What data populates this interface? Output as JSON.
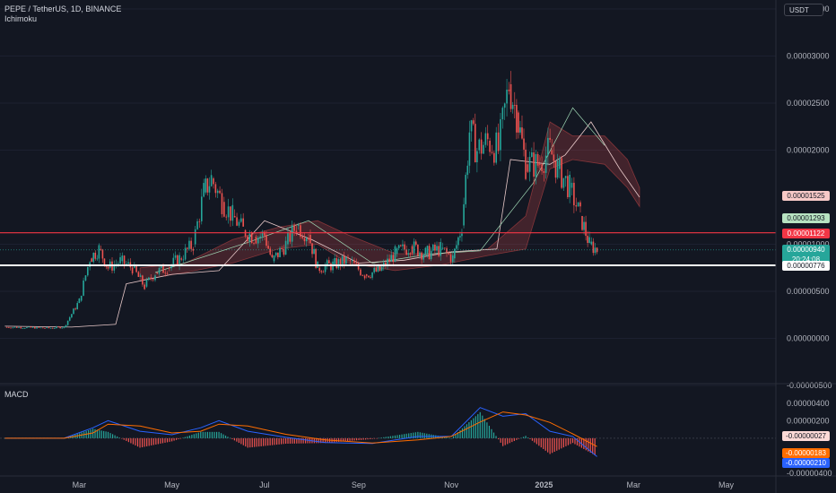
{
  "header": {
    "symbol_line": "PEPE / TetherUS, 1D, BINANCE",
    "indicator": "Ichimoku",
    "currency_button": "USDT"
  },
  "macd": {
    "label": "MACD"
  },
  "colors": {
    "background": "#131722",
    "up": "#26a69a",
    "down": "#ef5350",
    "macd_line": "#2962ff",
    "signal_line": "#ff6d00"
  },
  "price_axis": {
    "ticks": [
      "0.00003500",
      "0.00003000",
      "0.00002500",
      "0.00002000",
      "0.00001000",
      "0.00000500",
      "0.00000000",
      "-0.00000500"
    ]
  },
  "macd_axis": {
    "ticks": [
      "0.00000400",
      "0.00000200",
      "-0.00000400"
    ]
  },
  "time_axis": {
    "labels": [
      "Mar",
      "May",
      "Jul",
      "Sep",
      "Nov",
      "2025",
      "Mar",
      "May"
    ]
  },
  "price_tags": {
    "cloud_upper": "0.00001525",
    "cloud_lower": "0.00001293",
    "resistance": "0.00001122",
    "last_price": "0.00000940",
    "countdown": "20:24:08",
    "support": "0.00000776"
  },
  "macd_tags": {
    "histogram": "-0.00000027",
    "signal": "-0.00000183",
    "macd": "-0.00000210"
  },
  "chart_data": {
    "type": "candlestick",
    "symbol": "PEPE / TetherUS",
    "interval": "1D",
    "exchange": "BINANCE",
    "y_range": [
      -5e-06,
      3.5e-05
    ],
    "horizontal_lines": [
      1.122e-05,
      7.76e-06
    ],
    "price_points": [
      [
        "2024-01-12",
        1.2e-06
      ],
      [
        "2024-02-10",
        1.1e-06
      ],
      [
        "2024-02-20",
        1.2e-06
      ],
      [
        "2024-03-01",
        4e-06
      ],
      [
        "2024-03-08",
        8.5e-06
      ],
      [
        "2024-03-14",
        9.5e-06
      ],
      [
        "2024-03-20",
        7.5e-06
      ],
      [
        "2024-03-28",
        8.2e-06
      ],
      [
        "2024-04-05",
        7.5e-06
      ],
      [
        "2024-04-13",
        5.5e-06
      ],
      [
        "2024-04-20",
        7e-06
      ],
      [
        "2024-04-28",
        7.5e-06
      ],
      [
        "2024-05-06",
        8.5e-06
      ],
      [
        "2024-05-15",
        1e-05
      ],
      [
        "2024-05-22",
        1.55e-05
      ],
      [
        "2024-05-27",
        1.7e-05
      ],
      [
        "2024-06-03",
        1.45e-05
      ],
      [
        "2024-06-10",
        1.3e-05
      ],
      [
        "2024-06-17",
        1.15e-05
      ],
      [
        "2024-06-24",
        1.08e-05
      ],
      [
        "2024-07-01",
        1.1e-05
      ],
      [
        "2024-07-06",
        8.2e-06
      ],
      [
        "2024-07-15",
        1e-05
      ],
      [
        "2024-07-22",
        1.2e-05
      ],
      [
        "2024-07-30",
        1.1e-05
      ],
      [
        "2024-08-05",
        7.5e-06
      ],
      [
        "2024-08-15",
        7.8e-06
      ],
      [
        "2024-08-25",
        8.3e-06
      ],
      [
        "2024-09-05",
        6.8e-06
      ],
      [
        "2024-09-15",
        7.2e-06
      ],
      [
        "2024-09-25",
        9e-06
      ],
      [
        "2024-10-05",
        9.8e-06
      ],
      [
        "2024-10-15",
        9e-06
      ],
      [
        "2024-10-25",
        9.5e-06
      ],
      [
        "2024-11-02",
        8.5e-06
      ],
      [
        "2024-11-08",
        1.2e-05
      ],
      [
        "2024-11-13",
        2.2e-05
      ],
      [
        "2024-11-18",
        2e-05
      ],
      [
        "2024-11-25",
        2.1e-05
      ],
      [
        "2024-12-02",
        2e-05
      ],
      [
        "2024-12-09",
        2.7e-05
      ],
      [
        "2024-12-14",
        2.4e-05
      ],
      [
        "2024-12-20",
        1.85e-05
      ],
      [
        "2024-12-28",
        1.85e-05
      ],
      [
        "2025-01-05",
        2e-05
      ],
      [
        "2025-01-10",
        1.8e-05
      ],
      [
        "2025-01-18",
        1.6e-05
      ],
      [
        "2025-01-25",
        1.3e-05
      ],
      [
        "2025-01-31",
        1e-05
      ],
      [
        "2025-02-05",
        9.4e-06
      ]
    ],
    "macd_y_range": [
      -4e-06,
      5e-06
    ]
  }
}
